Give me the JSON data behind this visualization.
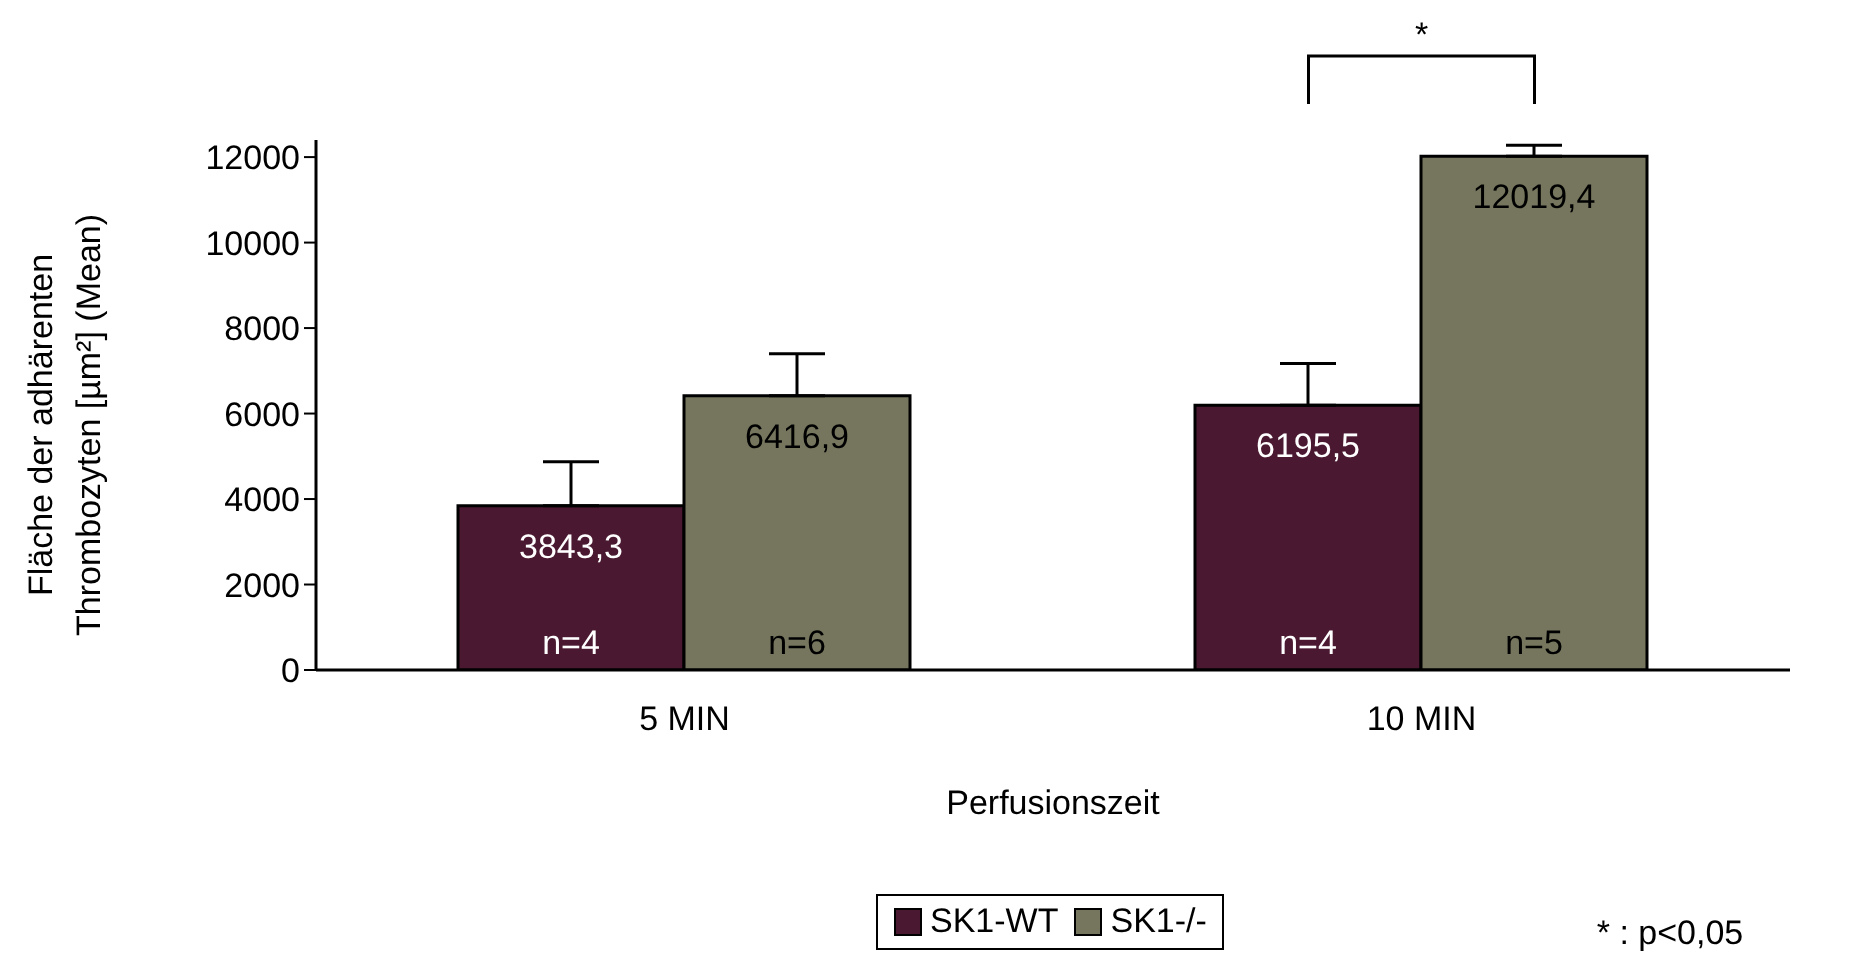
{
  "chart_data": {
    "type": "bar",
    "xlabel": "Perfusionszeit",
    "ylabel": "Fläche der adhärenten Thrombozyten [µm²] (Mean)",
    "categories": [
      "5 MIN",
      "10 MIN"
    ],
    "series": [
      {
        "name": "SK1-WT",
        "color": "#4a1830",
        "values": [
          3843.3,
          6195.5
        ],
        "value_labels": [
          "3843,3",
          "6195,5"
        ],
        "errors": [
          [
            3843.3,
            4870
          ],
          [
            6195.5,
            7170
          ]
        ]
      },
      {
        "name": "SK1-/-",
        "color": "#76765e",
        "values": [
          6416.9,
          12019.4
        ],
        "value_labels": [
          "6416,9",
          "12019,4"
        ],
        "errors": [
          [
            6416.9,
            7400
          ],
          [
            12019.4,
            12280
          ]
        ]
      }
    ],
    "ylim": [
      0,
      12400
    ],
    "yticks": [
      0,
      2000,
      4000,
      6000,
      8000,
      10000,
      12000
    ],
    "grid": false,
    "legend": "bottom",
    "annotations": [
      {
        "text": "n=4",
        "x": "5 MIN",
        "y": 0
      },
      {
        "text": "n=6",
        "x": "5 MIN",
        "y": 0
      },
      {
        "text": "n=4",
        "x": "10 MIN",
        "y": 0
      },
      {
        "text": "n=5",
        "x": "10 MIN",
        "y": 0
      },
      "*",
      "* : p<0,05"
    ]
  }
}
